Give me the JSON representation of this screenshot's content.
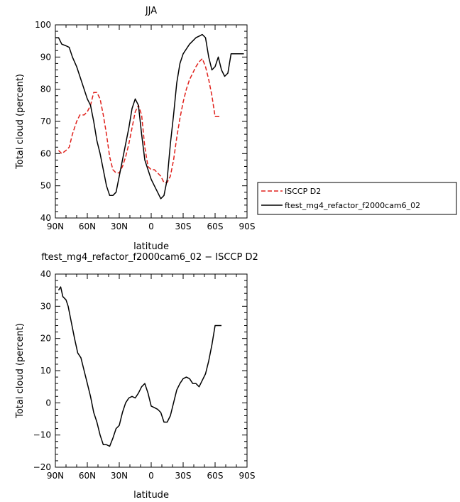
{
  "chart_data": [
    {
      "type": "line",
      "title": "JJA",
      "xlabel": "latitude",
      "ylabel": "Total cloud (percent)",
      "xlim": [
        -90,
        90
      ],
      "ylim": [
        40,
        100
      ],
      "xticks": [
        {
          "value": -90,
          "label": "90N"
        },
        {
          "value": -60,
          "label": "60N"
        },
        {
          "value": -30,
          "label": "30N"
        },
        {
          "value": 0,
          "label": "0"
        },
        {
          "value": 30,
          "label": "30S"
        },
        {
          "value": 60,
          "label": "60S"
        },
        {
          "value": 90,
          "label": "90S"
        }
      ],
      "yticks": [
        40,
        50,
        60,
        70,
        80,
        90,
        100
      ],
      "grid": false,
      "legend": "right",
      "series": [
        {
          "name": "ISCCP D2",
          "color": "#e0201b",
          "dash": "dashed",
          "x": [
            -87,
            -84,
            -80,
            -77,
            -74,
            -70,
            -67,
            -63,
            -60,
            -57,
            -54,
            -51,
            -48,
            -45,
            -42,
            -39,
            -36,
            -33,
            -30,
            -27,
            -24,
            -21,
            -18,
            -15,
            -12,
            -9,
            -6,
            -3,
            0,
            3,
            6,
            9,
            12,
            15,
            18,
            21,
            24,
            27,
            30,
            33,
            36,
            39,
            42,
            45,
            48,
            51,
            54,
            57,
            60,
            63,
            66
          ],
          "y": [
            61,
            60,
            61,
            62,
            66,
            70,
            72,
            72,
            73,
            75,
            79,
            79,
            77,
            72,
            66,
            59,
            55,
            54,
            54,
            56,
            59,
            63,
            68,
            73,
            75,
            72,
            62,
            56,
            55,
            55,
            54,
            53,
            51,
            51,
            53,
            58,
            65,
            71,
            76,
            80,
            83,
            85,
            87,
            88.5,
            89.5,
            87,
            83,
            78,
            71.5,
            71.5,
            71.5
          ]
        },
        {
          "name": "ftest_mg4_refactor_f2000cam6_02",
          "color": "#000000",
          "dash": "solid",
          "x": [
            -90,
            -87,
            -84,
            -80,
            -77,
            -74,
            -70,
            -67,
            -63,
            -60,
            -57,
            -54,
            -51,
            -48,
            -45,
            -42,
            -39,
            -36,
            -33,
            -30,
            -27,
            -24,
            -21,
            -18,
            -15,
            -12,
            -9,
            -6,
            -3,
            0,
            3,
            6,
            9,
            12,
            15,
            18,
            21,
            24,
            27,
            30,
            33,
            36,
            39,
            42,
            45,
            48,
            51,
            54,
            57,
            60,
            63,
            66,
            69,
            72,
            75,
            78,
            81,
            84,
            87
          ],
          "y": [
            96,
            96,
            94,
            93.5,
            93,
            90,
            87,
            84,
            80,
            77,
            75,
            70,
            64,
            60,
            55,
            50,
            47,
            47,
            48,
            53,
            58,
            63,
            68,
            74,
            77,
            75,
            66,
            58,
            55,
            52,
            50,
            48,
            46,
            47,
            52,
            63,
            72,
            82,
            88,
            91,
            92.5,
            94,
            95,
            96,
            96.5,
            97,
            96,
            90,
            86,
            87,
            90,
            86,
            84,
            85,
            91,
            91,
            91,
            91,
            91
          ]
        }
      ]
    },
    {
      "type": "line",
      "title": "ftest_mg4_refactor_f2000cam6_02 − ISCCP D2",
      "xlabel": "latitude",
      "ylabel": "Total cloud (percent)",
      "xlim": [
        -90,
        90
      ],
      "ylim": [
        -20,
        40
      ],
      "xticks": [
        {
          "value": -90,
          "label": "90N"
        },
        {
          "value": -60,
          "label": "60N"
        },
        {
          "value": -30,
          "label": "30N"
        },
        {
          "value": 0,
          "label": "0"
        },
        {
          "value": 30,
          "label": "30S"
        },
        {
          "value": 60,
          "label": "60S"
        },
        {
          "value": 90,
          "label": "90S"
        }
      ],
      "yticks": [
        -20,
        -10,
        0,
        10,
        20,
        30,
        40
      ],
      "grid": false,
      "series": [
        {
          "color": "#000000",
          "dash": "solid",
          "x": [
            -87,
            -85,
            -83,
            -80,
            -78,
            -75,
            -72,
            -69,
            -66,
            -63,
            -60,
            -57,
            -54,
            -51,
            -48,
            -45,
            -42,
            -39,
            -36,
            -33,
            -30,
            -27,
            -24,
            -21,
            -18,
            -15,
            -12,
            -9,
            -6,
            -3,
            0,
            3,
            6,
            9,
            12,
            15,
            18,
            21,
            24,
            27,
            30,
            33,
            36,
            39,
            42,
            45,
            48,
            51,
            54,
            57,
            60,
            63,
            66
          ],
          "y": [
            35,
            36,
            33,
            32,
            30,
            25,
            20,
            15.5,
            14,
            10,
            6,
            2,
            -3,
            -6,
            -10,
            -13,
            -13,
            -13.5,
            -11,
            -8,
            -7,
            -3,
            0,
            1.5,
            2,
            1.5,
            3,
            5,
            6,
            3,
            -1,
            -1.5,
            -2,
            -3,
            -6,
            -6,
            -4,
            0,
            4,
            6,
            7.5,
            8,
            7.5,
            6,
            6,
            5,
            7,
            9,
            13,
            18,
            24,
            24,
            24
          ]
        }
      ]
    }
  ]
}
